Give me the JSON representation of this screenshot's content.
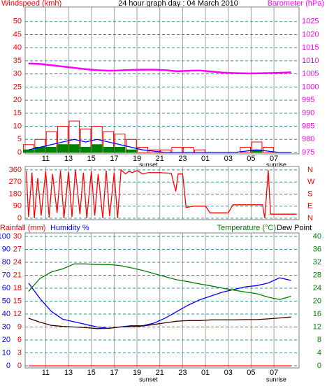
{
  "chart_data": [
    {
      "type": "line",
      "title": "24 hour graph day : 04 March 2010",
      "ylabel": "Windspeed (kmh)",
      "ycolor": "#ff0000",
      "y2label": "Barometer (hPa)",
      "y2color": "#ff00ff",
      "xlim": [
        9.2,
        33.2
      ],
      "xticks": [
        11,
        13,
        15,
        17,
        19,
        21,
        23,
        {
          "value": 25,
          "label": "01"
        },
        {
          "value": 27,
          "label": "03"
        },
        {
          "value": 29,
          "label": "05"
        },
        {
          "value": 31,
          "label": "07"
        }
      ],
      "ylim": [
        0,
        55
      ],
      "yticks": [
        0,
        5,
        10,
        15,
        20,
        25,
        30,
        35,
        40,
        45,
        50
      ],
      "y2lim": [
        975,
        1030
      ],
      "y2ticks": [
        975,
        980,
        985,
        990,
        995,
        1000,
        1005,
        1010,
        1015,
        1020,
        1025
      ],
      "grid": true,
      "annotations": [
        {
          "x": 20.0,
          "text": "sunset"
        },
        {
          "x": 31.2,
          "text": "sunrise"
        }
      ],
      "x": [
        9.5,
        10.5,
        11.5,
        12.5,
        13.5,
        14.5,
        15.5,
        16.5,
        17.5,
        18.5,
        19.5,
        20.5,
        21.5,
        22.5,
        23.5,
        24.5,
        25.5,
        26.5,
        27.5,
        28.5,
        29.5,
        30.5,
        31.5,
        32.5
      ],
      "series": [
        {
          "kind": "bars",
          "color": "#ff0000",
          "values": [
            3,
            5,
            8,
            10,
            12,
            9,
            10,
            8,
            7,
            5,
            2,
            1,
            1,
            2,
            2,
            1,
            0,
            0,
            0,
            2,
            4,
            2,
            0,
            0
          ]
        },
        {
          "kind": "bars",
          "color": "#008000",
          "values": [
            1,
            2,
            2,
            3,
            3,
            2,
            3,
            2,
            2,
            1,
            0,
            0,
            0,
            0,
            0,
            0,
            0,
            0,
            0,
            0,
            1,
            0,
            0,
            0
          ]
        },
        {
          "kind": "line",
          "color": "#0000ff",
          "values": [
            1,
            2,
            3,
            4,
            5,
            4,
            5,
            4,
            3,
            2,
            1,
            0.5,
            0,
            0,
            0,
            0,
            0,
            0,
            0,
            0.5,
            1,
            0.5,
            0,
            0
          ]
        },
        {
          "kind": "line",
          "color": "#ff00ff",
          "axis": "y2",
          "values": [
            1009,
            1008.8,
            1008.3,
            1007.8,
            1007.3,
            1006.8,
            1006.4,
            1006.2,
            1006.3,
            1006.5,
            1006.6,
            1006.6,
            1006.4,
            1006,
            1006.2,
            1006.3,
            1005.9,
            1005.5,
            1005.3,
            1005.2,
            1005.2,
            1005.3,
            1005.4,
            1005.6
          ]
        }
      ]
    },
    {
      "type": "line",
      "ycolor": "#ff0000",
      "y2color": "#ff0000",
      "xlim": [
        9.2,
        33.2
      ],
      "ylim": [
        0,
        370
      ],
      "yticks": [
        0,
        90,
        180,
        270,
        360
      ],
      "y2lim": [
        0,
        370
      ],
      "y2ticks": [
        {
          "value": 360,
          "label": "N"
        },
        {
          "value": 270,
          "label": "W"
        },
        {
          "value": 180,
          "label": "S"
        },
        {
          "value": 90,
          "label": "E"
        },
        {
          "value": 0,
          "label": "N"
        }
      ],
      "grid": true,
      "x": [
        9.3,
        9.5,
        9.8,
        10,
        10.3,
        10.6,
        11,
        11.3,
        11.6,
        12,
        12.3,
        12.6,
        13,
        13.3,
        13.6,
        14,
        14.3,
        14.6,
        15,
        15.3,
        15.6,
        16,
        16.3,
        16.6,
        17,
        17.3,
        17.6,
        18,
        18.3,
        18.6,
        19,
        19.5,
        20,
        21,
        22,
        22.4,
        22.6,
        23,
        23.3,
        24,
        25,
        25.4,
        26,
        27,
        27.4,
        28,
        29,
        30,
        30.2,
        30.5,
        30.7,
        31,
        32,
        33
      ],
      "series": [
        {
          "kind": "line",
          "color": "#ff0000",
          "values": [
            350,
            10,
            340,
            0,
            300,
            20,
            350,
            5,
            330,
            40,
            355,
            0,
            345,
            10,
            360,
            30,
            340,
            0,
            350,
            20,
            330,
            0,
            355,
            15,
            340,
            0,
            360,
            330,
            350,
            340,
            355,
            330,
            340,
            340,
            335,
            200,
            330,
            330,
            80,
            90,
            90,
            40,
            40,
            40,
            100,
            100,
            100,
            100,
            0,
            360,
            30,
            30,
            30,
            30
          ]
        }
      ]
    },
    {
      "type": "line",
      "ylabel": "Humidity %",
      "ycolor": "#0000ff",
      "y3label": "Rainfall (mm)",
      "y3color": "#ff0000",
      "y2label": "Temperature (°C)",
      "y2color": "#008000",
      "xlim": [
        9.2,
        33.2
      ],
      "xticks": [
        11,
        13,
        15,
        17,
        19,
        21,
        23,
        {
          "value": 25,
          "label": "01"
        },
        {
          "value": 27,
          "label": "03"
        },
        {
          "value": 29,
          "label": "05"
        },
        {
          "value": 31,
          "label": "07"
        }
      ],
      "ylim": [
        0,
        100
      ],
      "yticks": [
        0,
        10,
        20,
        30,
        40,
        50,
        60,
        70,
        80,
        90,
        100
      ],
      "y3lim": [
        0,
        30
      ],
      "y3ticks": [
        0,
        3,
        6,
        9,
        12,
        15,
        18,
        21,
        24,
        27,
        30
      ],
      "y2lim": [
        0,
        40
      ],
      "y2ticks": [
        0,
        4,
        8,
        12,
        16,
        20,
        24,
        28,
        32,
        36,
        40
      ],
      "grid": true,
      "annotations": [
        {
          "x": 20.0,
          "text": "sunset"
        },
        {
          "x": 31.2,
          "text": "sunrise"
        }
      ],
      "x": [
        9.5,
        10.5,
        11.5,
        12.5,
        13.5,
        14.5,
        15.5,
        16.5,
        17.5,
        18.5,
        19.5,
        20.5,
        21.5,
        22.5,
        23.5,
        24.5,
        25.5,
        26.5,
        27.5,
        28.5,
        29.5,
        30.5,
        31.5,
        32.5
      ],
      "series": [
        {
          "kind": "line",
          "color": "#ff0000",
          "axis": "y3",
          "values": [
            0,
            0,
            0,
            0,
            0,
            0,
            0,
            0,
            0,
            0,
            0,
            0,
            0,
            0,
            0,
            0,
            0,
            0,
            0,
            0,
            0,
            0,
            0,
            0
          ]
        },
        {
          "kind": "line",
          "color": "#0000ff",
          "values": [
            64,
            52,
            42,
            36,
            34,
            32,
            30,
            29,
            30,
            31,
            31,
            33,
            37,
            42,
            47,
            51,
            54,
            57,
            59,
            61,
            62,
            64,
            68,
            66
          ]
        },
        {
          "kind": "line",
          "color": "#008000",
          "axis": "y2",
          "values": [
            23,
            27,
            29,
            30,
            31.5,
            31.5,
            31.3,
            31.3,
            31,
            30.3,
            29.5,
            28.5,
            27.5,
            26.6,
            26,
            25.3,
            24.7,
            24,
            23.4,
            22.8,
            22.3,
            21.2,
            20.5,
            21.5
          ]
        },
        {
          "kind": "line",
          "name": "Dew Point",
          "color": "#400000",
          "axis": "y2",
          "values": [
            14.7,
            13.5,
            12.5,
            12.2,
            12,
            11.8,
            11.5,
            11.6,
            12,
            12.1,
            12.3,
            12.8,
            13.3,
            13.8,
            14,
            14,
            14.2,
            14.2,
            14.2,
            14.3,
            14.3,
            14.5,
            14.8,
            15.1
          ]
        }
      ]
    }
  ]
}
